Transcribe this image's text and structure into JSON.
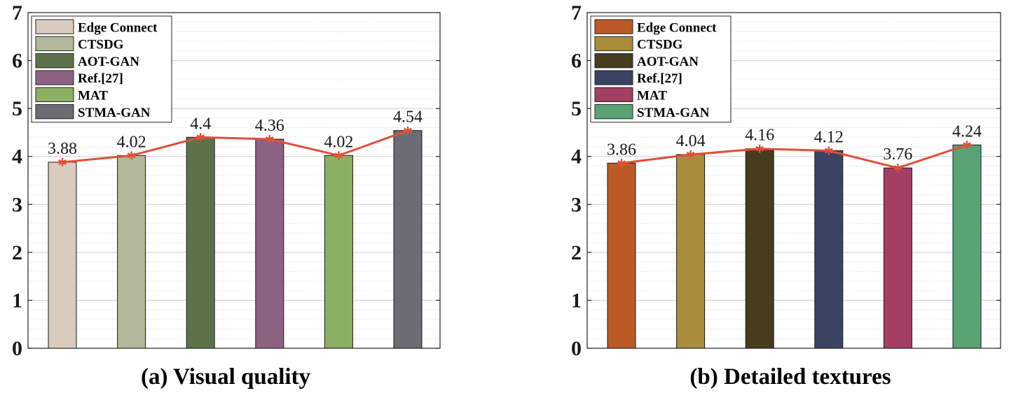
{
  "chart_data": [
    {
      "type": "bar",
      "title": "(a) Visual quality",
      "categories": [
        "Edge Connect",
        "CTSDG",
        "AOT-GAN",
        "Ref.[27]",
        "MAT",
        "STMA-GAN"
      ],
      "values": [
        3.88,
        4.02,
        4.4,
        4.36,
        4.02,
        4.54
      ],
      "value_labels": [
        "3.88",
        "4.02",
        "4.4",
        "4.36",
        "4.02",
        "4.54"
      ],
      "colors": [
        "#d9cbbd",
        "#b3b89a",
        "#5e7249",
        "#8d6280",
        "#8cb062",
        "#6c6c74"
      ],
      "overlay_line": {
        "color": "#e0503a",
        "marker": "asterisk"
      },
      "ylim": [
        0,
        7
      ],
      "yticks": [
        "0",
        "1",
        "2",
        "3",
        "4",
        "5",
        "6",
        "7"
      ],
      "grid": true,
      "legend": "top-left"
    },
    {
      "type": "bar",
      "title": "(b) Detailed textures",
      "categories": [
        "Edge Connect",
        "CTSDG",
        "AOT-GAN",
        "Ref.[27]",
        "MAT",
        "STMA-GAN"
      ],
      "values": [
        3.86,
        4.04,
        4.16,
        4.12,
        3.76,
        4.24
      ],
      "value_labels": [
        "3.86",
        "4.04",
        "4.16",
        "4.12",
        "3.76",
        "4.24"
      ],
      "colors": [
        "#bb5a26",
        "#a98c3c",
        "#463c1e",
        "#3a4462",
        "#a23f62",
        "#58a274"
      ],
      "overlay_line": {
        "color": "#e0503a",
        "marker": "asterisk"
      },
      "ylim": [
        0,
        7
      ],
      "yticks": [
        "0",
        "1",
        "2",
        "3",
        "4",
        "5",
        "6",
        "7"
      ],
      "grid": true,
      "legend": "top-left"
    }
  ]
}
